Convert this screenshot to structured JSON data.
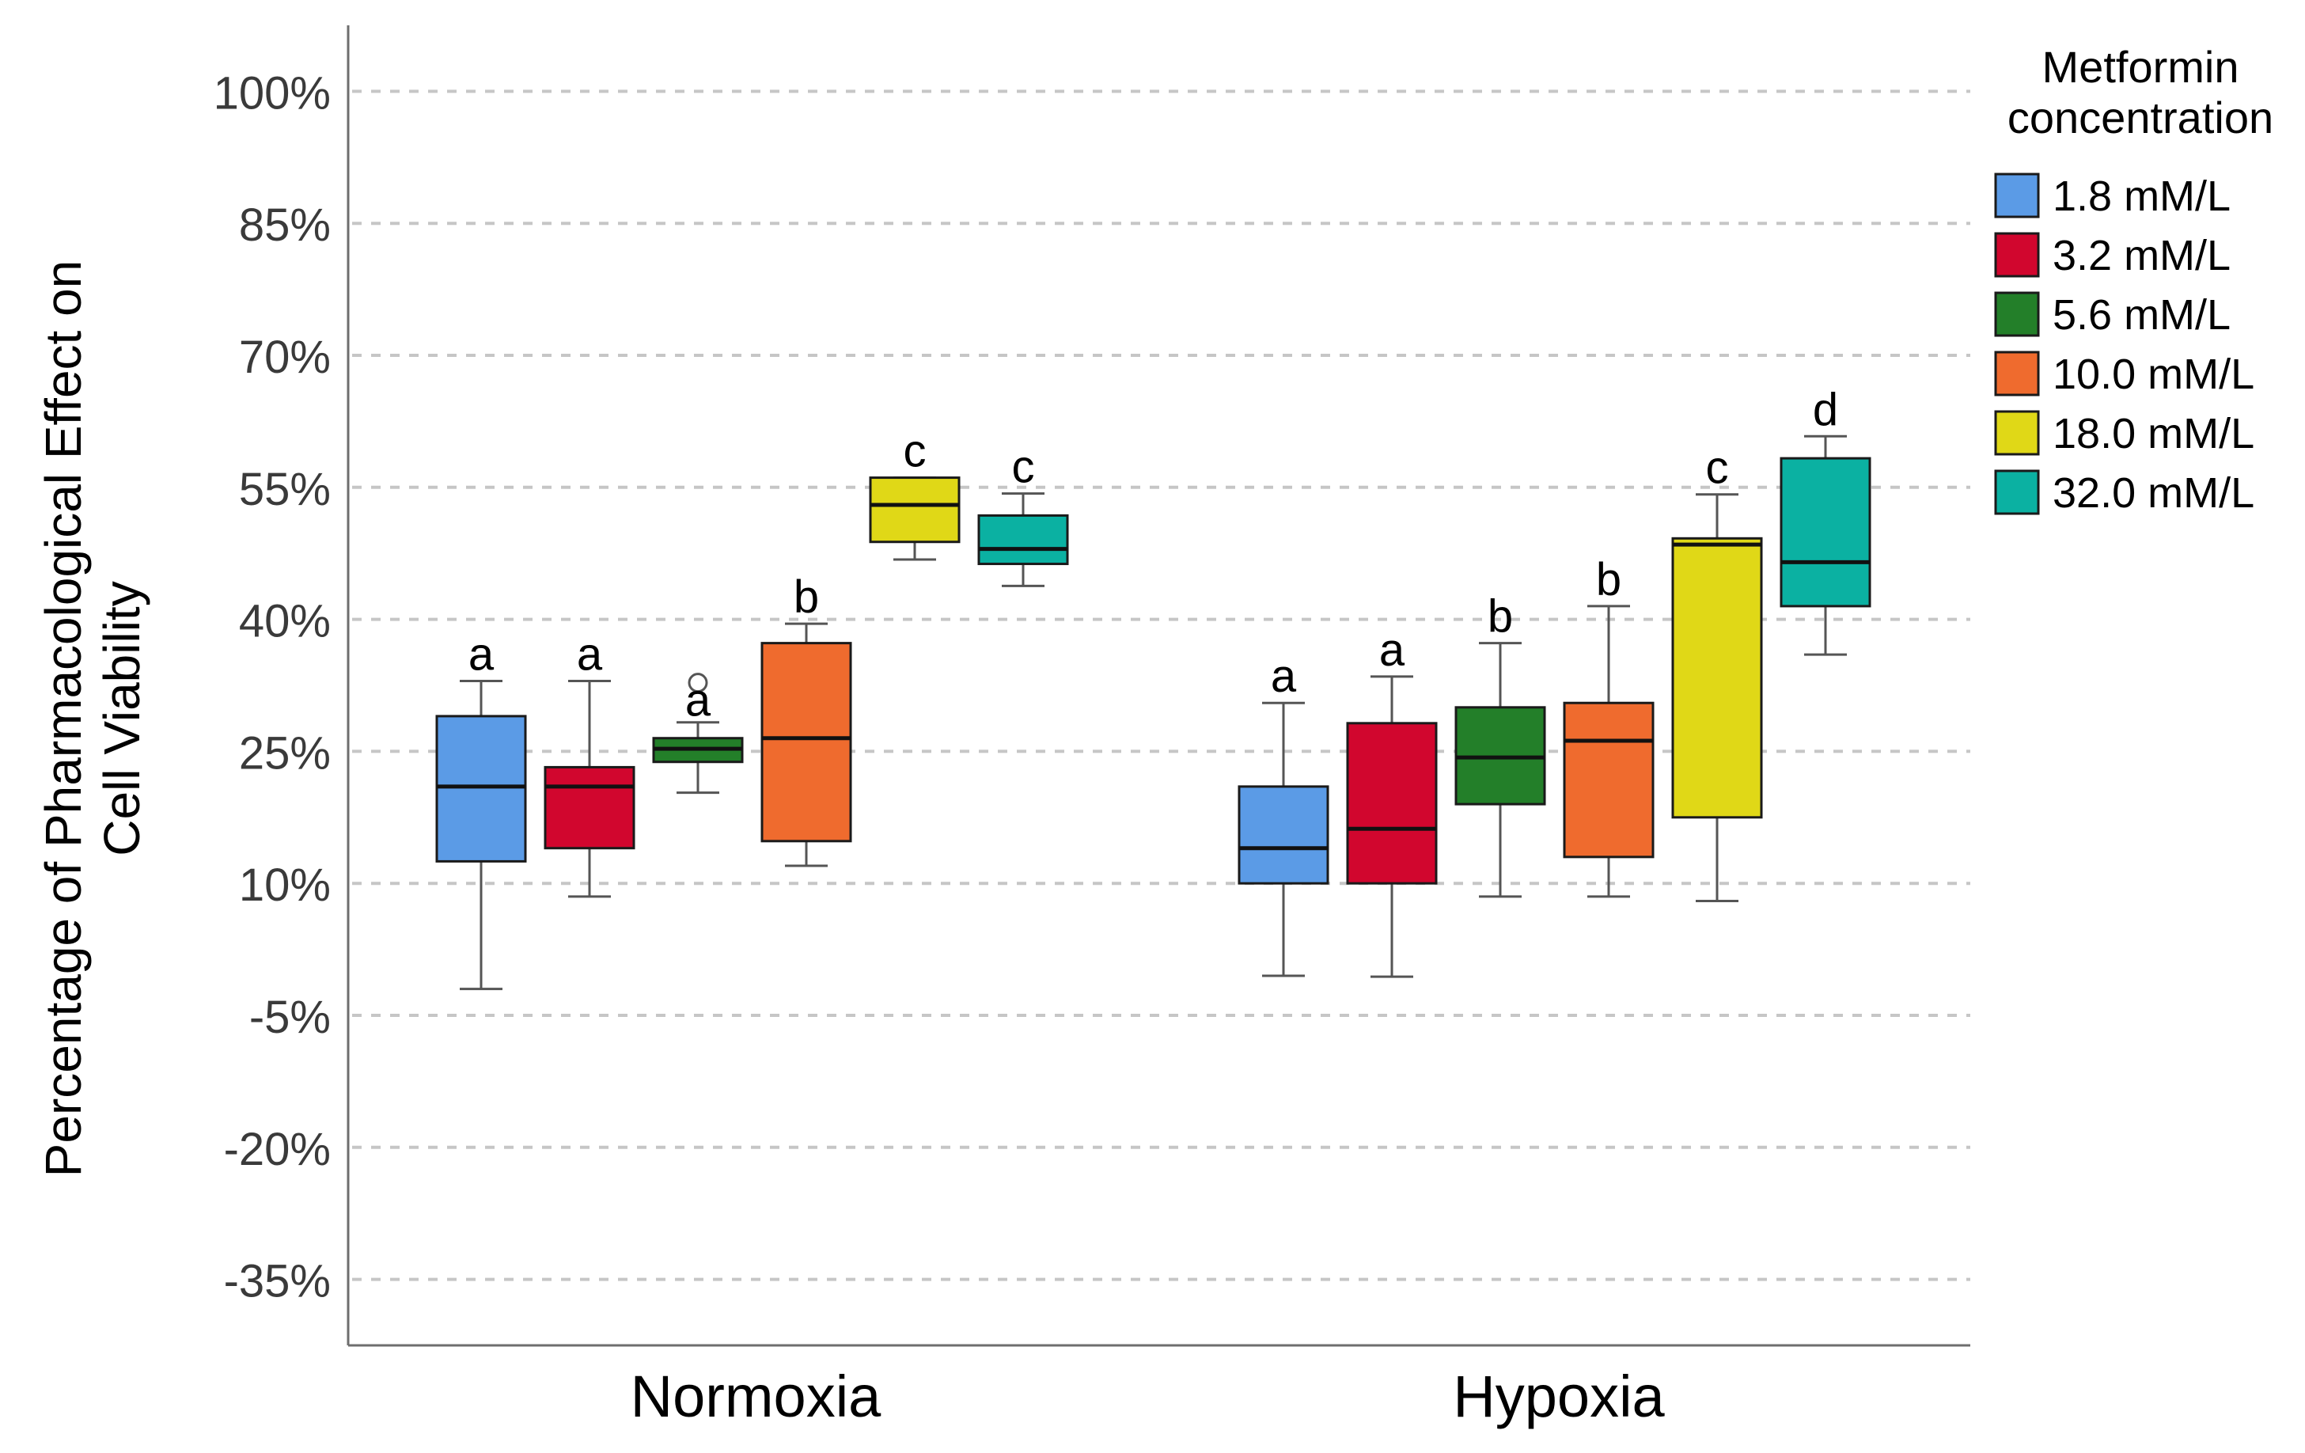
{
  "chart_data": {
    "type": "boxplot",
    "title": "",
    "xlabel": "",
    "ylabel_line1": "Percentage of Pharmacological Effect on",
    "ylabel_line2": "Cell Viability",
    "ylim": [
      -42.5,
      107.5
    ],
    "y_ticks": [
      -35,
      -20,
      -5,
      10,
      25,
      40,
      55,
      70,
      85,
      100
    ],
    "y_tick_labels": [
      "-35%",
      "-20%",
      "-5%",
      "10%",
      "25%",
      "40%",
      "55%",
      "70%",
      "85%",
      "100%"
    ],
    "grid": true,
    "groups": [
      "Normoxia",
      "Hypoxia"
    ],
    "legend": {
      "title_line1": "Metformin",
      "title_line2": "concentration",
      "position": "top-right"
    },
    "series": [
      {
        "name": "1.8 mM/L",
        "color": "#5b9be6",
        "boxes": [
          {
            "group": "Normoxia",
            "min": -2,
            "q1": 12.5,
            "median": 21,
            "q3": 29,
            "max": 33,
            "letter": "a"
          },
          {
            "group": "Hypoxia",
            "min": -0.5,
            "q1": 10,
            "median": 14,
            "q3": 21,
            "max": 30.5,
            "letter": "a"
          }
        ]
      },
      {
        "name": "3.2 mM/L",
        "color": "#d1062e",
        "boxes": [
          {
            "group": "Normoxia",
            "min": 8.5,
            "q1": 14,
            "median": 21,
            "q3": 23.2,
            "max": 33,
            "letter": "a"
          },
          {
            "group": "Hypoxia",
            "min": -0.6,
            "q1": 10,
            "median": 16.2,
            "q3": 28.2,
            "max": 33.5,
            "letter": "a"
          }
        ]
      },
      {
        "name": "5.6 mM/L",
        "color": "#237f29",
        "boxes": [
          {
            "group": "Normoxia",
            "min": 20.3,
            "q1": 23.8,
            "median": 25.3,
            "q3": 26.5,
            "max": 28.3,
            "outliers": [
              32.8
            ],
            "letter": "a"
          },
          {
            "group": "Hypoxia",
            "min": 8.5,
            "q1": 19,
            "median": 24.3,
            "q3": 30,
            "max": 37.3,
            "letter": "b"
          }
        ]
      },
      {
        "name": "10.0 mM/L",
        "color": "#ef6b2e",
        "boxes": [
          {
            "group": "Normoxia",
            "min": 12,
            "q1": 14.8,
            "median": 26.5,
            "q3": 37.3,
            "max": 39.5,
            "letter": "b"
          },
          {
            "group": "Hypoxia",
            "min": 8.5,
            "q1": 13,
            "median": 26.2,
            "q3": 30.5,
            "max": 41.5,
            "letter": "b"
          }
        ]
      },
      {
        "name": "18.0 mM/L",
        "color": "#e0d817",
        "boxes": [
          {
            "group": "Normoxia",
            "min": 46.8,
            "q1": 48.8,
            "median": 53,
            "q3": 56.1,
            "max": 56.1,
            "letter": "c"
          },
          {
            "group": "Hypoxia",
            "min": 8,
            "q1": 17.5,
            "median": 48.5,
            "q3": 49.2,
            "max": 54.2,
            "letter": "c"
          }
        ]
      },
      {
        "name": "32.0 mM/L",
        "color": "#0bb1a2",
        "boxes": [
          {
            "group": "Normoxia",
            "min": 43.8,
            "q1": 46.3,
            "median": 48,
            "q3": 51.8,
            "max": 54.3,
            "letter": "c"
          },
          {
            "group": "Hypoxia",
            "min": 36,
            "q1": 41.5,
            "median": 46.5,
            "q3": 58.3,
            "max": 60.8,
            "letter": "d"
          }
        ]
      }
    ]
  }
}
